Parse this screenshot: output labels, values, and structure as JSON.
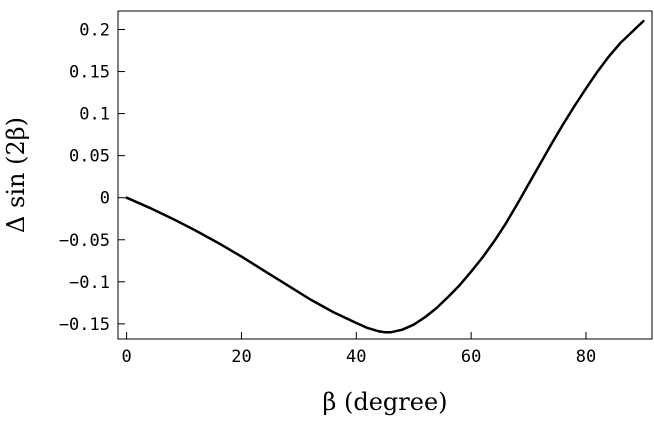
{
  "chart_data": {
    "type": "line",
    "title": "",
    "xlabel": "β (degree)",
    "ylabel": "Δ sin (2β)",
    "xlim": [
      -1.5,
      91.5
    ],
    "ylim": [
      -0.168,
      0.222
    ],
    "x_ticks": [
      0,
      20,
      40,
      60,
      80
    ],
    "x_tick_labels": [
      "0",
      "20",
      "40",
      "60",
      "80"
    ],
    "y_ticks": [
      -0.15,
      -0.1,
      -0.05,
      0,
      0.05,
      0.1,
      0.15,
      0.2
    ],
    "y_tick_labels": [
      "-0.15",
      "-0.1",
      "-0.05",
      "0",
      "0.05",
      "0.1",
      "0.15",
      "0.2"
    ],
    "grid": false,
    "legend": "none",
    "colors": {
      "line": "#000000",
      "frame": "#000000",
      "background": "#ffffff"
    },
    "series": [
      {
        "x": [
          0,
          4,
          8,
          12,
          16,
          20,
          24,
          28,
          32,
          36,
          40,
          42,
          44,
          45,
          46,
          48,
          50,
          52,
          54,
          56,
          58,
          60,
          62,
          64,
          66,
          68,
          70,
          72,
          74,
          76,
          78,
          80,
          82,
          84,
          86,
          88,
          90
        ],
        "y": [
          0,
          -0.012,
          -0.025,
          -0.039,
          -0.054,
          -0.07,
          -0.087,
          -0.104,
          -0.121,
          -0.136,
          -0.149,
          -0.155,
          -0.159,
          -0.16,
          -0.16,
          -0.157,
          -0.151,
          -0.142,
          -0.131,
          -0.118,
          -0.104,
          -0.088,
          -0.071,
          -0.052,
          -0.031,
          -0.008,
          0.016,
          0.04,
          0.064,
          0.087,
          0.109,
          0.13,
          0.15,
          0.168,
          0.184,
          0.197,
          0.21
        ]
      }
    ]
  }
}
